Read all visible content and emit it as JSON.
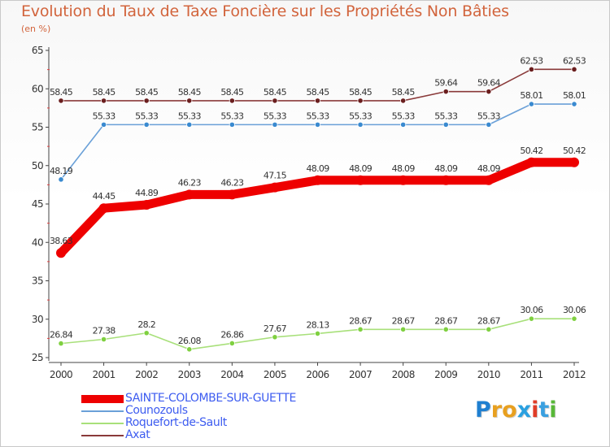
{
  "header": {
    "title": "Evolution du Taux de Taxe Foncière sur les Propriétés Non Bâties",
    "subtitle": "(en %)"
  },
  "chart_data": {
    "type": "line",
    "title": "Evolution du Taux de Taxe Foncière sur les Propriétés Non Bâties",
    "ylabel": "(en %)",
    "xlabel": "",
    "categories": [
      "2000",
      "2001",
      "2002",
      "2003",
      "2004",
      "2005",
      "2006",
      "2007",
      "2008",
      "2009",
      "2010",
      "2011",
      "2012"
    ],
    "ylim": [
      25,
      65
    ],
    "yticks": [
      25,
      30,
      35,
      40,
      45,
      50,
      55,
      60,
      65
    ],
    "grid": false,
    "legend_position": "bottom-left",
    "series": [
      {
        "name": "SAINTE-COLOMBE-SUR-GUETTE",
        "color": "#ee0000",
        "values": [
          38.63,
          44.45,
          44.89,
          46.23,
          46.23,
          47.15,
          48.09,
          48.09,
          48.09,
          48.09,
          48.09,
          50.42,
          50.42
        ],
        "labels": [
          "38.63",
          "44.45",
          "44.89",
          "46.23",
          "46.23",
          "47.15",
          "48.09",
          "48.09",
          "48.09",
          "48.09",
          "48.09",
          "50.42",
          "50.42"
        ]
      },
      {
        "name": "Counozouls",
        "color": "#6aa0d8",
        "values": [
          48.19,
          55.33,
          55.33,
          55.33,
          55.33,
          55.33,
          55.33,
          55.33,
          55.33,
          55.33,
          55.33,
          58.01,
          58.01
        ],
        "labels": [
          "48.19",
          "55.33",
          "55.33",
          "55.33",
          "55.33",
          "55.33",
          "55.33",
          "55.33",
          "55.33",
          "55.33",
          "55.33",
          "58.01",
          "58.01"
        ]
      },
      {
        "name": "Roquefort-de-Sault",
        "color": "#a8e07a",
        "values": [
          26.84,
          27.38,
          28.2,
          26.08,
          26.86,
          27.67,
          28.13,
          28.67,
          28.67,
          28.67,
          28.67,
          30.06,
          30.06
        ],
        "labels": [
          "26.84",
          "27.38",
          "28.2",
          "26.08",
          "26.86",
          "27.67",
          "28.13",
          "28.67",
          "28.67",
          "28.67",
          "28.67",
          "30.06",
          "30.06"
        ]
      },
      {
        "name": "Axat",
        "color": "#8a3a3a",
        "values": [
          58.45,
          58.45,
          58.45,
          58.45,
          58.45,
          58.45,
          58.45,
          58.45,
          58.45,
          59.64,
          59.64,
          62.53,
          62.53
        ],
        "labels": [
          "58.45",
          "58.45",
          "58.45",
          "58.45",
          "58.45",
          "58.45",
          "58.45",
          "58.45",
          "58.45",
          "59.64",
          "59.64",
          "62.53",
          "62.53"
        ]
      }
    ]
  },
  "logo": {
    "text": "Proxiti",
    "letters": [
      {
        "ch": "P",
        "color": "#1f7fd0"
      },
      {
        "ch": "r",
        "color": "#e8a020"
      },
      {
        "ch": "o",
        "color": "#e8a020"
      },
      {
        "ch": "x",
        "color": "#2aa0e0"
      },
      {
        "ch": "i",
        "color": "#e03c28"
      },
      {
        "ch": "t",
        "color": "#3aa0e0"
      },
      {
        "ch": "i",
        "color": "#58b838"
      }
    ]
  }
}
